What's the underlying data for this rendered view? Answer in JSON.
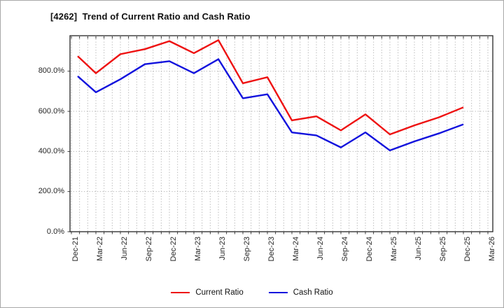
{
  "title": "[4262]  Trend of Current Ratio and Cash Ratio",
  "chart_data": {
    "type": "line",
    "title": "[4262]  Trend of Current Ratio and Cash Ratio",
    "x_tick_labels": [
      "Dec-21",
      "Mar-22",
      "Jun-22",
      "Sep-22",
      "Dec-22",
      "Mar-23",
      "Jun-23",
      "Sep-23",
      "Dec-23",
      "Mar-24",
      "Jun-24",
      "Sep-24",
      "Dec-24",
      "Mar-25",
      "Jun-25",
      "Sep-25",
      "Dec-25",
      "Mar-26"
    ],
    "series": [
      {
        "name": "Current Ratio",
        "color": "#ee1111",
        "values": [
          875,
          790,
          885,
          910,
          950,
          890,
          955,
          740,
          770,
          555,
          575,
          505,
          585,
          485,
          530,
          570,
          620
        ]
      },
      {
        "name": "Cash Ratio",
        "color": "#1212dd",
        "values": [
          775,
          695,
          760,
          835,
          850,
          790,
          860,
          665,
          685,
          495,
          480,
          420,
          495,
          405,
          450,
          490,
          535
        ]
      }
    ],
    "unit": "%",
    "y_axis": {
      "min": 0,
      "max": 977,
      "tick_step": 200,
      "tick_labels": [
        "0.0%",
        "200.0%",
        "400.0%",
        "600.0%",
        "800.0%"
      ]
    },
    "x_axis": {
      "minor_grid": "monthly",
      "major_tick_every": "quarter",
      "last_data_label": "Dec-25"
    },
    "grid": {
      "show": true,
      "style": "dotted",
      "color": "#b0b0b0"
    },
    "legend": {
      "position": "bottom-center",
      "items": [
        "Current Ratio",
        "Cash Ratio"
      ]
    }
  }
}
